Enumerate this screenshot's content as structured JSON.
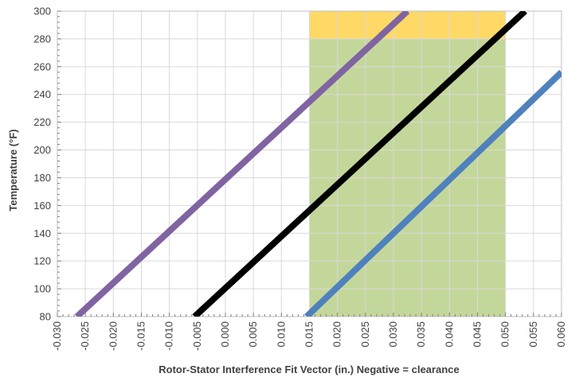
{
  "chart_data": {
    "type": "line",
    "xlabel": "Rotor-Stator Interference Fit Vector (in.) Negative = clearance",
    "ylabel": "Temperature (°F)",
    "xlim": [
      -0.03,
      0.06
    ],
    "ylim": [
      80,
      300
    ],
    "x_ticks": [
      "-0.030",
      "-0.025",
      "-0.020",
      "-0.015",
      "-0.010",
      "-0.005",
      "0.000",
      "0.005",
      "0.010",
      "0.015",
      "0.020",
      "0.025",
      "0.030",
      "0.035",
      "0.040",
      "0.045",
      "0.050",
      "0.055",
      "0.060"
    ],
    "y_ticks": [
      "80",
      "100",
      "120",
      "140",
      "160",
      "180",
      "200",
      "220",
      "240",
      "260",
      "280",
      "300"
    ],
    "grid": true,
    "legend": "none",
    "regions": [
      {
        "x": [
          0.015,
          0.05
        ],
        "y": [
          80,
          280
        ],
        "color": "#c4d79b"
      },
      {
        "x": [
          0.015,
          0.05
        ],
        "y": [
          280,
          300
        ],
        "color": "#ffd966"
      }
    ],
    "series": [
      {
        "color": "#8064a2",
        "points": [
          [
            -0.0265,
            80
          ],
          [
            0.0325,
            300
          ]
        ]
      },
      {
        "color": "#000000",
        "points": [
          [
            -0.0055,
            80
          ],
          [
            0.0535,
            300
          ]
        ]
      },
      {
        "color": "#4f81bd",
        "points": [
          [
            0.0145,
            80
          ],
          [
            0.06,
            256
          ]
        ]
      }
    ]
  }
}
